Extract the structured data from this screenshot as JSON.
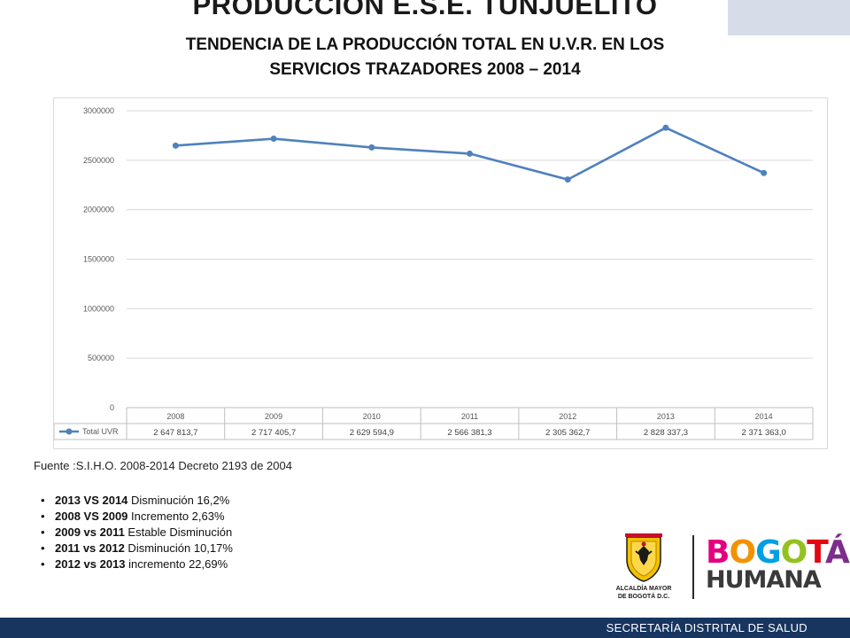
{
  "header": {
    "title": "PRODUCCION  E.S.E. TUNJUELITO",
    "subtitle_line1": "TENDENCIA  DE LA PRODUCCIÓN TOTAL EN U.V.R. EN LOS",
    "subtitle_line2": "SERVICIOS TRAZADORES    2008 – 2014"
  },
  "chart_data": {
    "type": "line",
    "title": "",
    "xlabel": "",
    "ylabel": "",
    "categories": [
      "2008",
      "2009",
      "2010",
      "2011",
      "2012",
      "2013",
      "2014"
    ],
    "y_ticks": [
      "3000000",
      "2500000",
      "2000000",
      "1500000",
      "1000000",
      "500000",
      "0"
    ],
    "ylim": [
      0,
      3000000
    ],
    "grid": true,
    "legend": "data-table-bottom",
    "series": [
      {
        "name": "Total UVR",
        "color": "#4f81bd",
        "values": [
          2647813.7,
          2717405.7,
          2629594.9,
          2566381.3,
          2305362.7,
          2828337.3,
          2371363.0
        ],
        "labels": [
          "2 647 813,7",
          "2 717 405,7",
          "2 629 594,9",
          "2 566 381,3",
          "2 305 362,7",
          "2 828 337,3",
          "2 371 363,0"
        ]
      }
    ]
  },
  "source": "Fuente :S.I.H.O. 2008-2014  Decreto 2193 de 2004",
  "notes": [
    {
      "bold": "2013 VS 2014",
      "text": " Disminución 16,2%"
    },
    {
      "bold": "2008 VS 2009",
      "text": " Incremento 2,63%"
    },
    {
      "bold": "2009 vs 2011",
      "text": " Estable Disminución"
    },
    {
      "bold": "2011 vs 2012",
      "text": " Disminución 10,17%"
    },
    {
      "bold": "2012 vs 2013",
      "text": " incremento 22,69%"
    }
  ],
  "logos": {
    "alcaldia_line1": "ALCALDÍA MAYOR",
    "alcaldia_line2": "DE BOGOTÁ D.C.",
    "bogota_letters": [
      "B",
      "O",
      "G",
      "O",
      "T",
      "Á"
    ],
    "bogota_colors": [
      "#e3007e",
      "#f39200",
      "#009fe3",
      "#95c11f",
      "#e30613",
      "#7d2d8c"
    ],
    "humana_text": "HUMANA"
  },
  "footer": {
    "text": "SECRETARÍA DISTRITAL DE SALUD"
  }
}
